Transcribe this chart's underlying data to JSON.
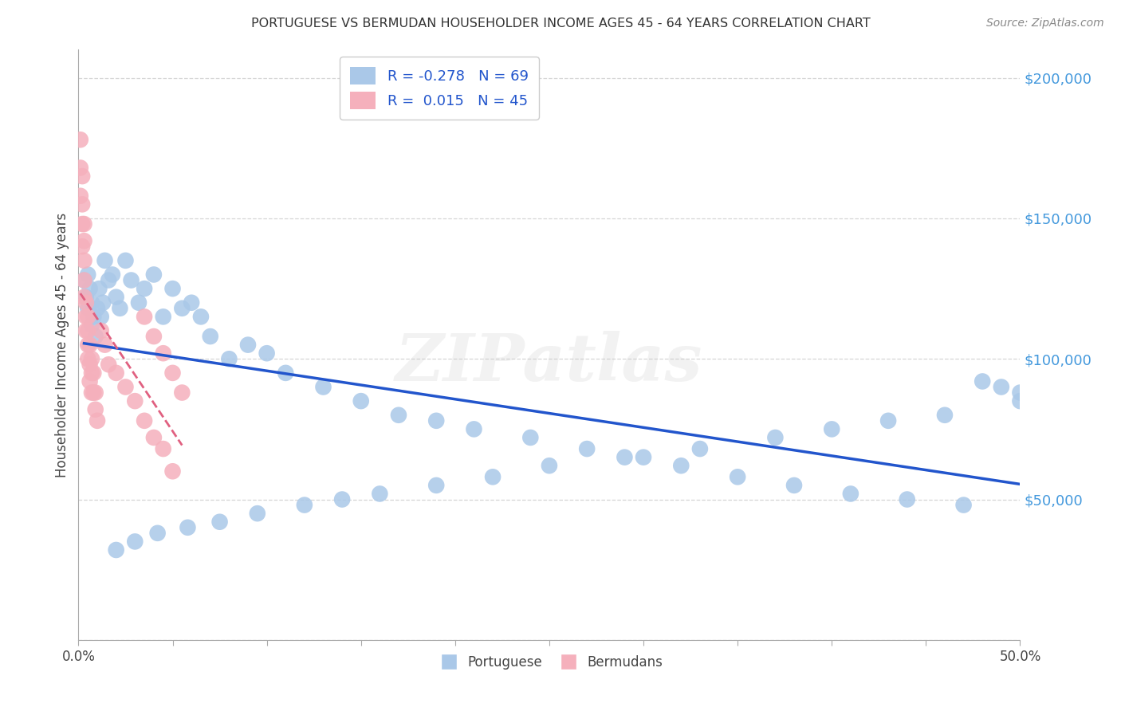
{
  "title": "PORTUGUESE VS BERMUDAN HOUSEHOLDER INCOME AGES 45 - 64 YEARS CORRELATION CHART",
  "source": "Source: ZipAtlas.com",
  "ylabel": "Householder Income Ages 45 - 64 years",
  "watermark": "ZIPatlas",
  "legend_label1": "Portuguese",
  "legend_label2": "Bermudans",
  "r1": "-0.278",
  "n1": "69",
  "r2": "0.015",
  "n2": "45",
  "blue_color": "#aac8e8",
  "pink_color": "#f5b0bc",
  "blue_line_color": "#2255cc",
  "pink_line_color": "#e06080",
  "background_color": "#ffffff",
  "grid_color": "#cccccc",
  "ytick_color": "#4499dd",
  "portuguese_x": [
    0.003,
    0.004,
    0.005,
    0.005,
    0.006,
    0.007,
    0.007,
    0.008,
    0.009,
    0.01,
    0.011,
    0.012,
    0.013,
    0.014,
    0.016,
    0.018,
    0.02,
    0.022,
    0.025,
    0.028,
    0.032,
    0.035,
    0.04,
    0.045,
    0.05,
    0.055,
    0.06,
    0.065,
    0.07,
    0.08,
    0.09,
    0.1,
    0.11,
    0.13,
    0.15,
    0.17,
    0.19,
    0.21,
    0.24,
    0.27,
    0.3,
    0.32,
    0.35,
    0.38,
    0.41,
    0.44,
    0.47,
    0.49,
    0.5,
    0.5,
    0.48,
    0.46,
    0.43,
    0.4,
    0.37,
    0.33,
    0.29,
    0.25,
    0.22,
    0.19,
    0.16,
    0.14,
    0.12,
    0.095,
    0.075,
    0.058,
    0.042,
    0.03,
    0.02
  ],
  "portuguese_y": [
    128000,
    122000,
    130000,
    118000,
    125000,
    120000,
    112000,
    115000,
    108000,
    118000,
    125000,
    115000,
    120000,
    135000,
    128000,
    130000,
    122000,
    118000,
    135000,
    128000,
    120000,
    125000,
    130000,
    115000,
    125000,
    118000,
    120000,
    115000,
    108000,
    100000,
    105000,
    102000,
    95000,
    90000,
    85000,
    80000,
    78000,
    75000,
    72000,
    68000,
    65000,
    62000,
    58000,
    55000,
    52000,
    50000,
    48000,
    90000,
    88000,
    85000,
    92000,
    80000,
    78000,
    75000,
    72000,
    68000,
    65000,
    62000,
    58000,
    55000,
    52000,
    50000,
    48000,
    45000,
    42000,
    40000,
    38000,
    35000,
    32000
  ],
  "bermudans_x": [
    0.001,
    0.001,
    0.001,
    0.002,
    0.002,
    0.002,
    0.002,
    0.003,
    0.003,
    0.003,
    0.003,
    0.003,
    0.004,
    0.004,
    0.004,
    0.005,
    0.005,
    0.005,
    0.005,
    0.006,
    0.006,
    0.006,
    0.007,
    0.007,
    0.007,
    0.008,
    0.008,
    0.009,
    0.009,
    0.01,
    0.012,
    0.014,
    0.016,
    0.02,
    0.025,
    0.03,
    0.035,
    0.04,
    0.045,
    0.05,
    0.035,
    0.04,
    0.045,
    0.05,
    0.055
  ],
  "bermudans_y": [
    178000,
    168000,
    158000,
    165000,
    155000,
    148000,
    140000,
    148000,
    142000,
    135000,
    128000,
    122000,
    120000,
    115000,
    110000,
    115000,
    110000,
    105000,
    100000,
    105000,
    98000,
    92000,
    100000,
    95000,
    88000,
    95000,
    88000,
    88000,
    82000,
    78000,
    110000,
    105000,
    98000,
    95000,
    90000,
    85000,
    78000,
    72000,
    68000,
    60000,
    115000,
    108000,
    102000,
    95000,
    88000
  ],
  "xlim": [
    0.0,
    0.5
  ],
  "ylim": [
    0,
    210000
  ],
  "yticks": [
    0,
    50000,
    100000,
    150000,
    200000
  ],
  "ytick_labels": [
    "",
    "$50,000",
    "$100,000",
    "$150,000",
    "$200,000"
  ],
  "xtick_positions": [
    0.0,
    0.05,
    0.1,
    0.15,
    0.2,
    0.25,
    0.3,
    0.35,
    0.4,
    0.45,
    0.5
  ],
  "xtick_show_labels": [
    0.0,
    0.5
  ]
}
